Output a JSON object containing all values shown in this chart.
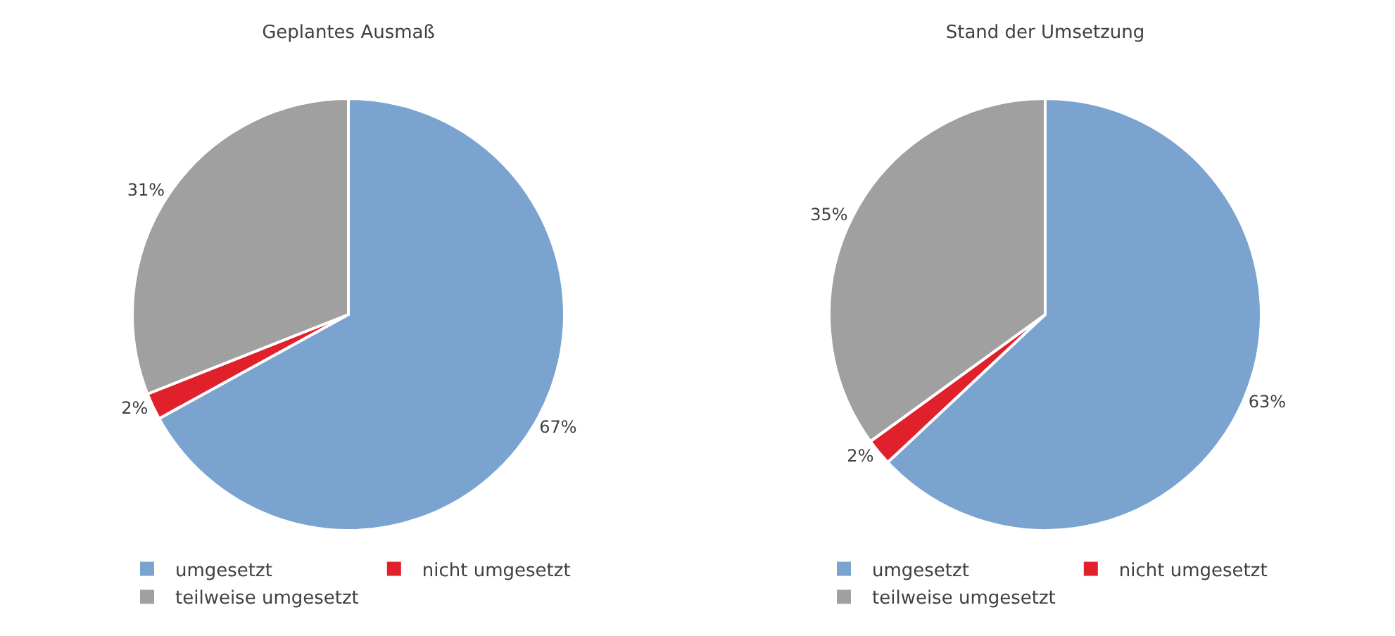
{
  "chart_data": [
    {
      "type": "pie",
      "title": "Geplantes Ausmaß",
      "categories": [
        "umgesetzt",
        "nicht umgesetzt",
        "teilweise umgesetzt"
      ],
      "values": [
        67,
        2,
        31
      ],
      "value_labels": [
        "67%",
        "2%",
        "31%"
      ],
      "colors": [
        "#7aa3cf",
        "#e0202a",
        "#a0a0a0"
      ],
      "legend": "bottom"
    },
    {
      "type": "pie",
      "title": "Stand der Umsetzung",
      "categories": [
        "umgesetzt",
        "nicht umgesetzt",
        "teilweise umgesetzt"
      ],
      "values": [
        63,
        2,
        35
      ],
      "value_labels": [
        "63%",
        "2%",
        "35%"
      ],
      "colors": [
        "#7aa3cf",
        "#e0202a",
        "#a0a0a0"
      ],
      "legend": "bottom"
    }
  ]
}
